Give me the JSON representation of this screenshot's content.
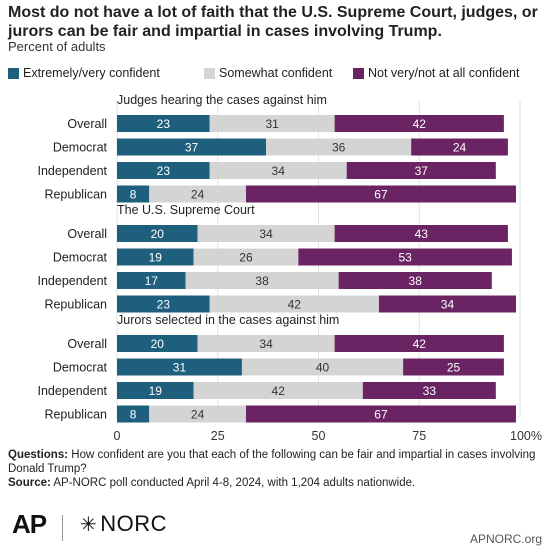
{
  "title": "Most do not have a lot of faith that the U.S. Supreme Court, judges, or jurors can be fair and impartial in cases involving Trump.",
  "subtitle": "Percent of adults",
  "legend": [
    {
      "label": "Extremely/very confident",
      "color": "#1f5f7e"
    },
    {
      "label": "Somewhat confident",
      "color": "#d4d4d4"
    },
    {
      "label": "Not very/not at all confident",
      "color": "#6b2463"
    }
  ],
  "chart_data": {
    "type": "bar",
    "orientation": "horizontal",
    "stacked": true,
    "xlim": [
      0,
      100
    ],
    "xticks": [
      "0",
      "25",
      "50",
      "75",
      "100%"
    ],
    "series_names": [
      "Extremely/very confident",
      "Somewhat confident",
      "Not very/not at all confident"
    ],
    "groups": [
      {
        "title": "Judges hearing the cases against him",
        "rows": [
          {
            "label": "Overall",
            "values": [
              23,
              31,
              42
            ]
          },
          {
            "label": "Democrat",
            "values": [
              37,
              36,
              24
            ]
          },
          {
            "label": "Independent",
            "values": [
              23,
              34,
              37
            ]
          },
          {
            "label": "Republican",
            "values": [
              8,
              24,
              67
            ]
          }
        ]
      },
      {
        "title": "The U.S. Supreme Court",
        "rows": [
          {
            "label": "Overall",
            "values": [
              20,
              34,
              43
            ]
          },
          {
            "label": "Democrat",
            "values": [
              19,
              26,
              53
            ]
          },
          {
            "label": "Independent",
            "values": [
              17,
              38,
              38
            ]
          },
          {
            "label": "Republican",
            "values": [
              23,
              42,
              34
            ]
          }
        ]
      },
      {
        "title": "Jurors selected in the cases against him",
        "rows": [
          {
            "label": "Overall",
            "values": [
              20,
              34,
              42
            ]
          },
          {
            "label": "Democrat",
            "values": [
              31,
              40,
              25
            ]
          },
          {
            "label": "Independent",
            "values": [
              19,
              42,
              33
            ]
          },
          {
            "label": "Republican",
            "values": [
              8,
              24,
              67
            ]
          }
        ]
      }
    ]
  },
  "notes": {
    "questions_label": "Questions:",
    "questions_text": "How confident are you that each of the following can be fair and impartial in cases involving Donald Trump?",
    "source_label": "Source:",
    "source_text": "AP-NORC poll conducted April 4-8, 2024, with 1,204 adults nationwide."
  },
  "footer": {
    "ap_logo": "AP",
    "norc_logo": "NORC",
    "site": "APNORC.org"
  }
}
